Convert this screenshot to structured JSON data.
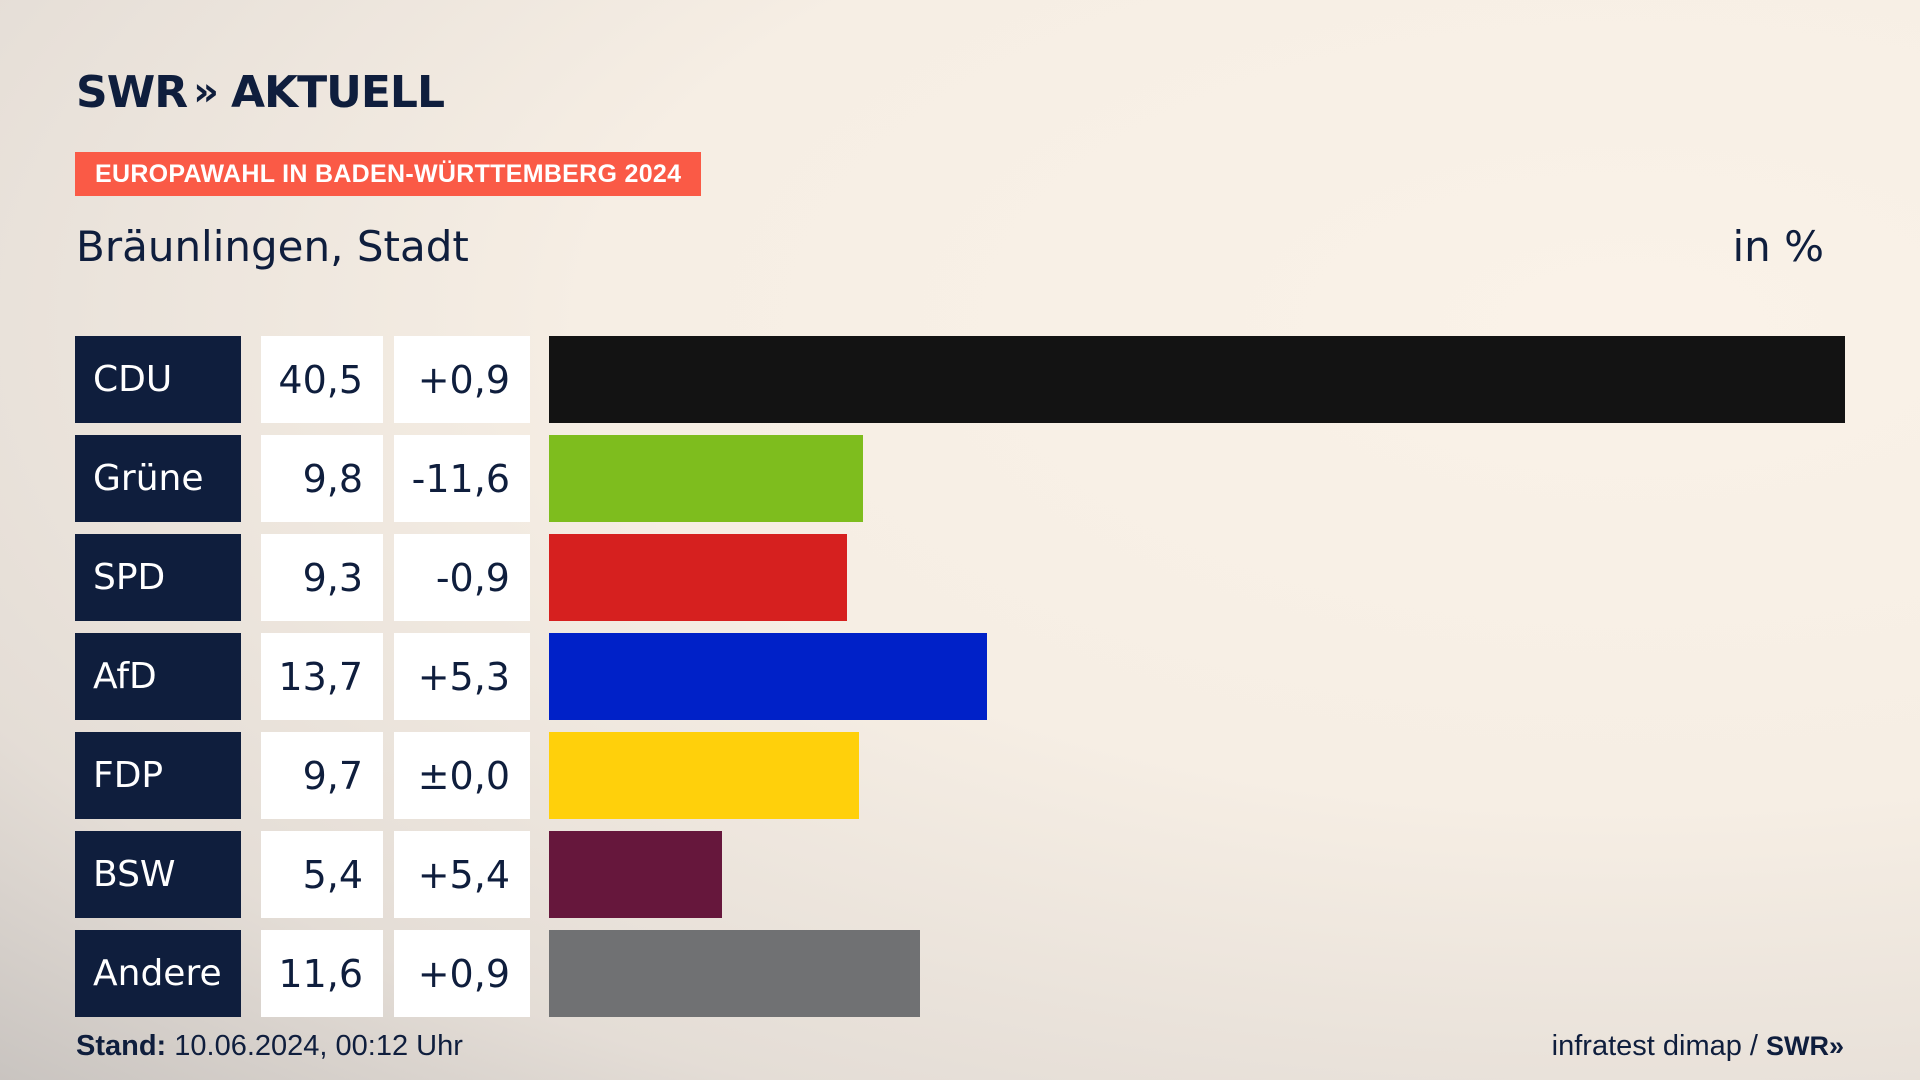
{
  "brand": {
    "name": "SWR",
    "chevrons": "»",
    "product": "AKTUELL"
  },
  "kicker": "EUROPAWAHL IN BADEN-WÜRTTEMBERG 2024",
  "subtitle": "Bräunlingen, Stadt",
  "unit": "in %",
  "footer": {
    "stand_label": "Stand:",
    "stand_value": "10.06.2024, 00:12 Uhr",
    "source": "infratest dimap /",
    "source_logo": "SWR»"
  },
  "chart_data": {
    "type": "bar",
    "orientation": "horizontal",
    "categories": [
      "CDU",
      "Grüne",
      "SPD",
      "AfD",
      "FDP",
      "BSW",
      "Andere"
    ],
    "values": [
      40.5,
      9.8,
      9.3,
      13.7,
      9.7,
      5.4,
      11.6
    ],
    "value_labels": [
      "40,5",
      "9,8",
      "9,3",
      "13,7",
      "9,7",
      "5,4",
      "11,6"
    ],
    "diff_labels": [
      "+0,9",
      "-11,6",
      "-0,9",
      "+5,3",
      "±0,0",
      "+5,4",
      "+0,9"
    ],
    "colors": [
      "#131313",
      "#7ebd1e",
      "#d6201f",
      "#0021c8",
      "#ffd00b",
      "#66173c",
      "#707173"
    ],
    "xlim": [
      0,
      40.5
    ],
    "title": "",
    "xlabel": "",
    "ylabel": ""
  }
}
